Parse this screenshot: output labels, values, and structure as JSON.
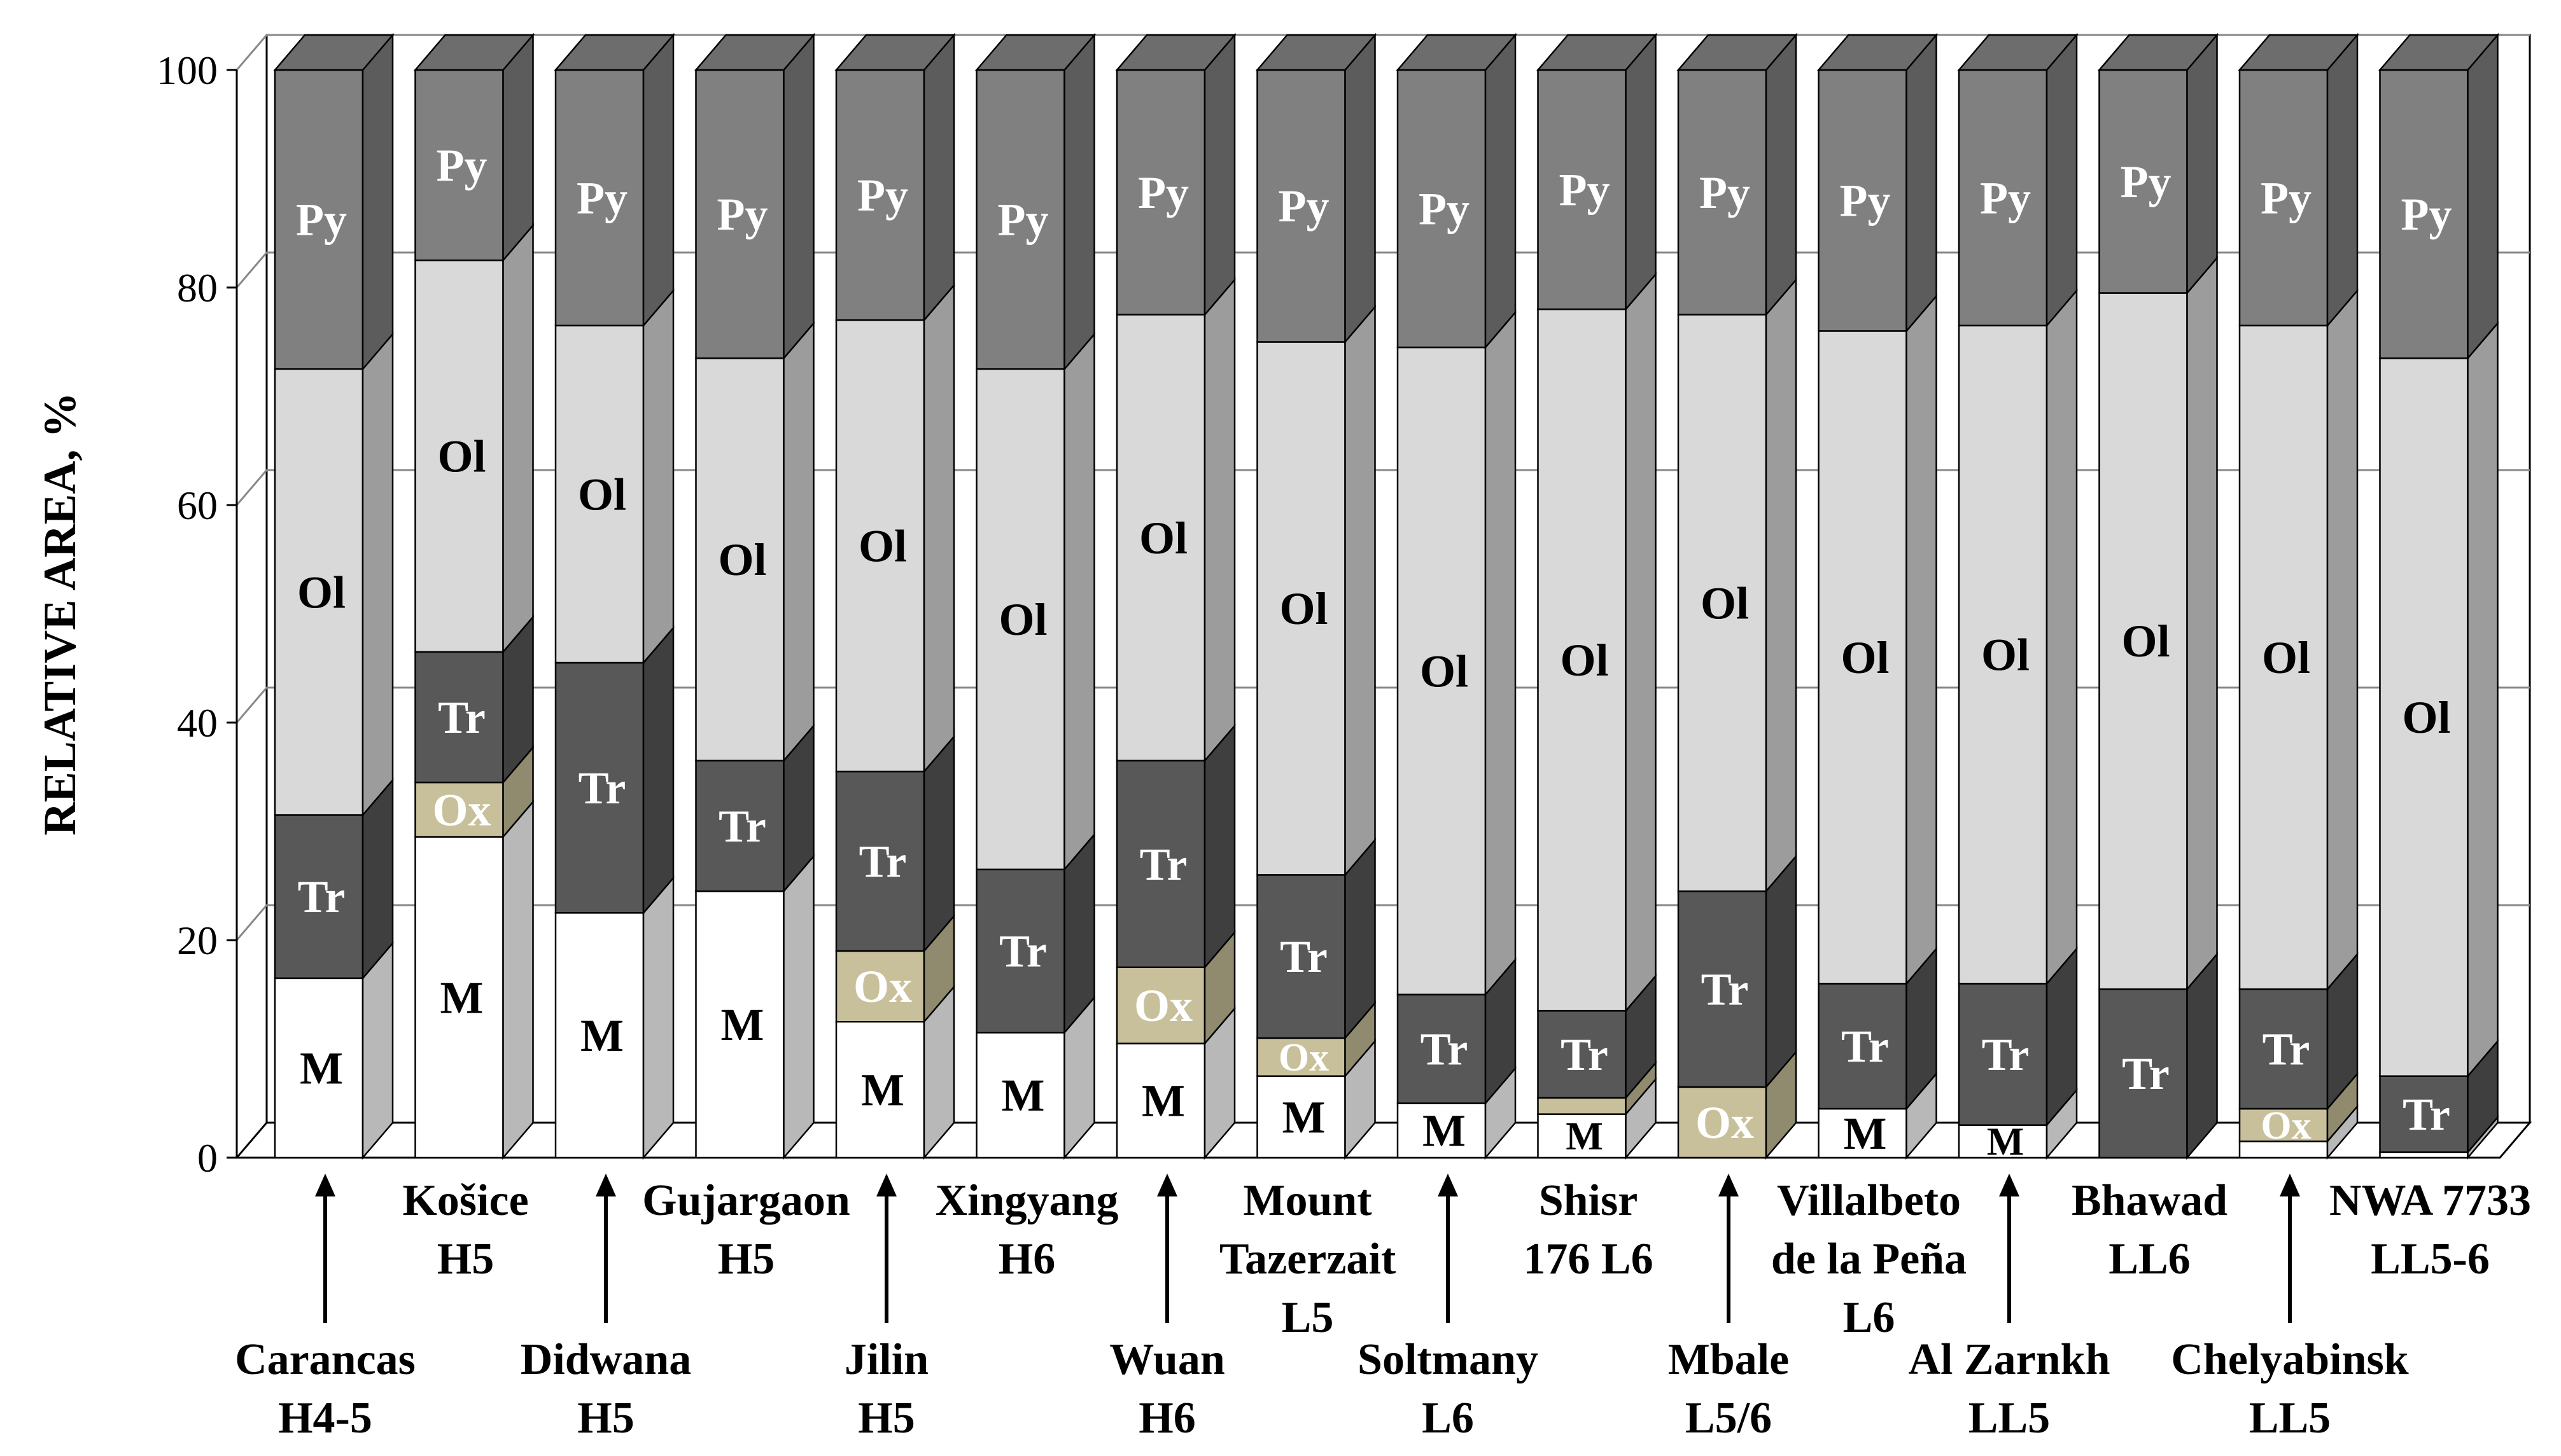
{
  "chart_data": {
    "type": "bar",
    "stacked": true,
    "three_d": true,
    "title": "",
    "xlabel": "",
    "ylabel": "RELATIVE AREA, %",
    "ylim": [
      0,
      100
    ],
    "yticks": [
      "0",
      "20",
      "40",
      "60",
      "80",
      "100"
    ],
    "grid": true,
    "legend": "none",
    "components": [
      {
        "code": "M",
        "color": "#ffffff",
        "label_color": "#000000"
      },
      {
        "code": "Ox",
        "color": "#c8c09a",
        "label_color": "#ffffff"
      },
      {
        "code": "Tr",
        "color": "#585858",
        "label_color": "#ffffff"
      },
      {
        "code": "Ol",
        "color": "#d9d9d9",
        "label_color": "#000000"
      },
      {
        "code": "Py",
        "color": "#808080",
        "label_color": "#ffffff"
      }
    ],
    "categories": [
      {
        "name": "Carancas",
        "class": "H4-5",
        "label_lines": [
          "Carancas",
          "H4-5"
        ],
        "label_row": "bottom",
        "arrow": true
      },
      {
        "name": "Košice",
        "class": "H5",
        "label_lines": [
          "Košice",
          "H5"
        ],
        "label_row": "top",
        "arrow": false
      },
      {
        "name": "Didwana",
        "class": "H5",
        "label_lines": [
          "Didwana",
          "H5"
        ],
        "label_row": "bottom",
        "arrow": true
      },
      {
        "name": "Gujargaon",
        "class": "H5",
        "label_lines": [
          "Gujargaon",
          "H5"
        ],
        "label_row": "top",
        "arrow": false
      },
      {
        "name": "Jilin",
        "class": "H5",
        "label_lines": [
          "Jilin",
          "H5"
        ],
        "label_row": "bottom",
        "arrow": true
      },
      {
        "name": "Xingyang",
        "class": "H6",
        "label_lines": [
          "Xingyang",
          "H6"
        ],
        "label_row": "top",
        "arrow": false
      },
      {
        "name": "Wuan",
        "class": "H6",
        "label_lines": [
          "Wuan",
          "H6"
        ],
        "label_row": "bottom",
        "arrow": true
      },
      {
        "name": "Mount Tazerzait",
        "class": "L5",
        "label_lines": [
          "Mount",
          "Tazerzait",
          "L5"
        ],
        "label_row": "top",
        "arrow": false
      },
      {
        "name": "Soltmany",
        "class": "L6",
        "label_lines": [
          "Soltmany",
          "L6"
        ],
        "label_row": "bottom",
        "arrow": true
      },
      {
        "name": "Shisr 176",
        "class": "L6",
        "label_lines": [
          "Shisr",
          "176 L6"
        ],
        "label_row": "top",
        "arrow": false
      },
      {
        "name": "Mbale",
        "class": "L5/6",
        "label_lines": [
          "Mbale",
          "L5/6"
        ],
        "label_row": "bottom",
        "arrow": true
      },
      {
        "name": "Villalbeto de la Peña",
        "class": "L6",
        "label_lines": [
          "Villalbeto",
          "de la Peña",
          "L6"
        ],
        "label_row": "top",
        "arrow": false
      },
      {
        "name": "Al Zarnkh",
        "class": "LL5",
        "label_lines": [
          "Al Zarnkh",
          "LL5"
        ],
        "label_row": "bottom",
        "arrow": true
      },
      {
        "name": "Bhawad",
        "class": "LL6",
        "label_lines": [
          "Bhawad",
          "LL6"
        ],
        "label_row": "top",
        "arrow": false
      },
      {
        "name": "Chelyabinsk",
        "class": "LL5",
        "label_lines": [
          "Chelyabinsk",
          "LL5"
        ],
        "label_row": "bottom",
        "arrow": true
      },
      {
        "name": "NWA 7733",
        "class": "LL5-6",
        "label_lines": [
          "NWA 7733",
          "LL5-6"
        ],
        "label_row": "top",
        "arrow": false
      }
    ],
    "series": [
      {
        "name": "M",
        "values": [
          16.5,
          29.5,
          22.5,
          24.5,
          12.5,
          11.5,
          10.5,
          7.5,
          5,
          4,
          0,
          4.5,
          3,
          0,
          1.5,
          0.5
        ]
      },
      {
        "name": "Ox",
        "values": [
          0,
          5,
          0,
          0,
          6.5,
          0,
          7,
          3.5,
          0,
          1.5,
          6.5,
          0,
          0,
          0,
          3,
          0
        ]
      },
      {
        "name": "Tr",
        "values": [
          15,
          12,
          23,
          12,
          16.5,
          15,
          19,
          15,
          10,
          8,
          18,
          11.5,
          13,
          15.5,
          11,
          7
        ]
      },
      {
        "name": "Ol",
        "values": [
          41,
          36,
          31,
          37,
          41.5,
          46,
          41,
          49,
          59.5,
          64.5,
          53,
          60,
          60.5,
          64,
          61,
          66
        ]
      },
      {
        "name": "Py",
        "values": [
          27.5,
          17.5,
          23.5,
          26.5,
          23,
          27.5,
          22.5,
          25,
          25.5,
          22,
          22.5,
          24,
          23.5,
          20.5,
          23.5,
          26.5
        ]
      }
    ]
  }
}
